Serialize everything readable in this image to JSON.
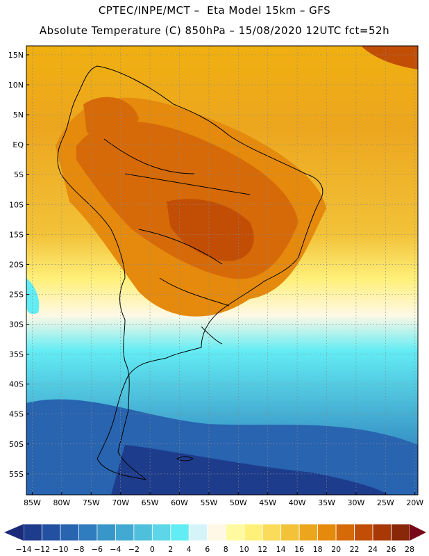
{
  "header": {
    "line1": "CPTEC/INPE/MCT –  Eta Model 15km – GFS",
    "line2": "Absolute Temperature (C) 850hPa – 15/08/2020 12UTC fct=52h"
  },
  "map": {
    "lat_labels": [
      "15N",
      "10N",
      "5N",
      "EQ",
      "5S",
      "10S",
      "15S",
      "20S",
      "25S",
      "30S",
      "35S",
      "40S",
      "45S",
      "50S",
      "55S"
    ],
    "lon_labels": [
      "85W",
      "80W",
      "75W",
      "70W",
      "65W",
      "60W",
      "55W",
      "50W",
      "45W",
      "40W",
      "35W",
      "30W",
      "25W",
      "20W"
    ],
    "lat_values": [
      15,
      10,
      5,
      0,
      -5,
      -10,
      -15,
      -20,
      -25,
      -30,
      -35,
      -40,
      -45,
      -50,
      -55
    ],
    "lon_values": [
      -85,
      -80,
      -75,
      -70,
      -65,
      -60,
      -55,
      -50,
      -45,
      -40,
      -35,
      -30,
      -25,
      -20
    ],
    "extent": {
      "lon_min": -86,
      "lon_max": -19.5,
      "lat_min": -58.5,
      "lat_max": 16.5
    }
  },
  "colorbar": {
    "labels": [
      "-14",
      "-12",
      "-10",
      "-8",
      "-6",
      "-4",
      "-2",
      "0",
      "2",
      "4",
      "6",
      "8",
      "10",
      "12",
      "14",
      "16",
      "18",
      "20",
      "22",
      "24",
      "26",
      "28"
    ],
    "colors": [
      "#1e3c8c",
      "#2350a0",
      "#2864b0",
      "#2f7cbe",
      "#3896c8",
      "#42aad2",
      "#4ec0dc",
      "#5cd6e8",
      "#62ecf4",
      "#d4f4fa",
      "#fff8e6",
      "#fffaa0",
      "#fff07a",
      "#fadc5a",
      "#f2c238",
      "#eca61e",
      "#e58a0c",
      "#d66a08",
      "#c24e06",
      "#a83806",
      "#882808"
    ],
    "low_arrow_color": "#1a2a78",
    "high_arrow_color": "#780818"
  }
}
